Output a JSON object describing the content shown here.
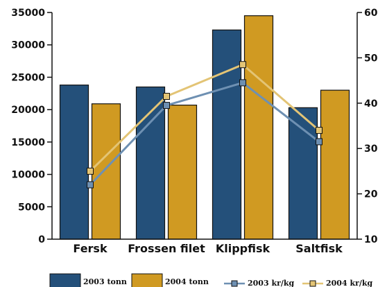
{
  "chart_data": {
    "type": "bar",
    "categories": [
      "Fersk",
      "Frossen filet",
      "Klippfisk",
      "Saltfisk"
    ],
    "series": [
      {
        "name": "2003 tonn",
        "type": "bar",
        "axis": "left",
        "color": "#24507a",
        "values": [
          23800,
          23500,
          32300,
          20300
        ]
      },
      {
        "name": "2004 tonn",
        "type": "bar",
        "axis": "left",
        "color": "#d09a22",
        "values": [
          20900,
          20700,
          34500,
          23000
        ]
      },
      {
        "name": "2003 kr/kg",
        "type": "line",
        "axis": "right",
        "color": "#6e90b2",
        "values": [
          22.0,
          39.5,
          44.5,
          31.5
        ]
      },
      {
        "name": "2004 kr/kg",
        "type": "line",
        "axis": "right",
        "color": "#e3c475",
        "values": [
          25.0,
          41.5,
          48.5,
          34.0
        ]
      }
    ],
    "ylim_left": [
      0,
      35000
    ],
    "yticks_left": [
      0,
      5000,
      10000,
      15000,
      20000,
      25000,
      30000,
      35000
    ],
    "ylim_right": [
      10,
      60
    ],
    "yticks_right": [
      10,
      20,
      30,
      40,
      50,
      60
    ],
    "grid": false,
    "legend_position": "bottom"
  }
}
